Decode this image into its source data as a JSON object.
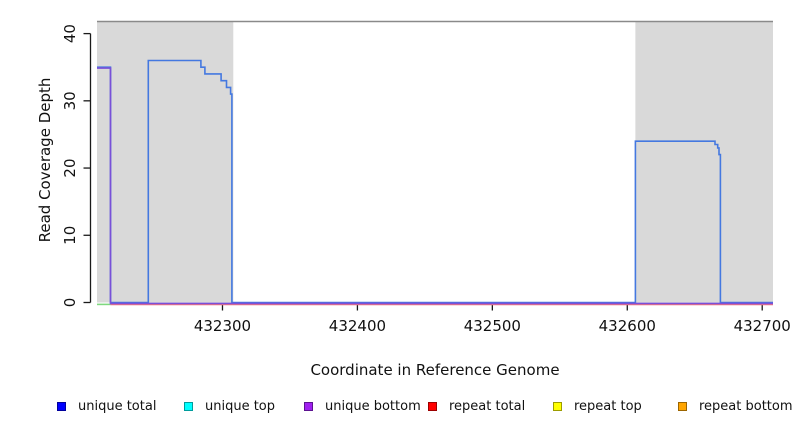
{
  "chart_data": {
    "type": "line",
    "title": "",
    "xlabel": "Coordinate in Reference Genome",
    "ylabel": "Read Coverage Depth",
    "xlim": [
      432207,
      432708
    ],
    "ylim": [
      0,
      41.8
    ],
    "grid": false,
    "x_ticks": [
      432300,
      432400,
      432500,
      432600,
      432700
    ],
    "y_ticks": [
      0,
      10,
      20,
      30,
      40
    ],
    "legend_position": "bottom",
    "background_color": "#ffffff",
    "repeat_region_fill": "#d9d9d9",
    "repeat_regions": [
      {
        "start": 432207,
        "end": 432308
      },
      {
        "start": 432606,
        "end": 432708
      }
    ],
    "top_boundary_line": {
      "y": 41.8,
      "color": "#8a8a8a"
    },
    "series": [
      {
        "name": "repeat total",
        "color": "#f0707f",
        "points": [
          [
            432217,
            0
          ],
          [
            432708,
            0
          ]
        ]
      },
      {
        "name": "unique top / repeat top overlap",
        "color": "#7fd87f",
        "points": [
          [
            432207,
            0
          ],
          [
            432217,
            0
          ]
        ]
      },
      {
        "name": "unique total",
        "color": "#4478e0",
        "points": [
          [
            432207,
            35
          ],
          [
            432217,
            35
          ],
          [
            432217,
            0
          ],
          [
            432245,
            0
          ],
          [
            432245,
            36
          ],
          [
            432284,
            36
          ],
          [
            432284,
            35
          ],
          [
            432287,
            35
          ],
          [
            432287,
            34
          ],
          [
            432299,
            34
          ],
          [
            432299,
            33
          ],
          [
            432303,
            33
          ],
          [
            432303,
            32
          ],
          [
            432306,
            32
          ],
          [
            432306,
            31
          ],
          [
            432307,
            31
          ],
          [
            432307,
            0
          ],
          [
            432606,
            0
          ],
          [
            432606,
            24
          ],
          [
            432665,
            24
          ],
          [
            432665,
            23.5
          ],
          [
            432667,
            23.5
          ],
          [
            432667,
            23
          ],
          [
            432668,
            23
          ],
          [
            432668,
            22
          ],
          [
            432669,
            22
          ],
          [
            432669,
            0
          ],
          [
            432708,
            0
          ]
        ]
      },
      {
        "name": "unique bottom",
        "color": "#7a50d8",
        "points": [
          [
            432207,
            35
          ],
          [
            432217,
            35
          ],
          [
            432217,
            0
          ],
          [
            432708,
            0
          ]
        ]
      }
    ]
  },
  "legend": {
    "items": [
      {
        "label": "unique total",
        "color": "#0000ff",
        "border": "#00009c"
      },
      {
        "label": "unique top",
        "color": "#00ffff",
        "border": "#009c9c"
      },
      {
        "label": "unique bottom",
        "color": "#a020f0",
        "border": "#5c1390"
      },
      {
        "label": "repeat total",
        "color": "#ff0000",
        "border": "#9c0000"
      },
      {
        "label": "repeat top",
        "color": "#ffff00",
        "border": "#9c9c00"
      },
      {
        "label": "repeat bottom",
        "color": "#ffa500",
        "border": "#9c6500"
      }
    ]
  }
}
